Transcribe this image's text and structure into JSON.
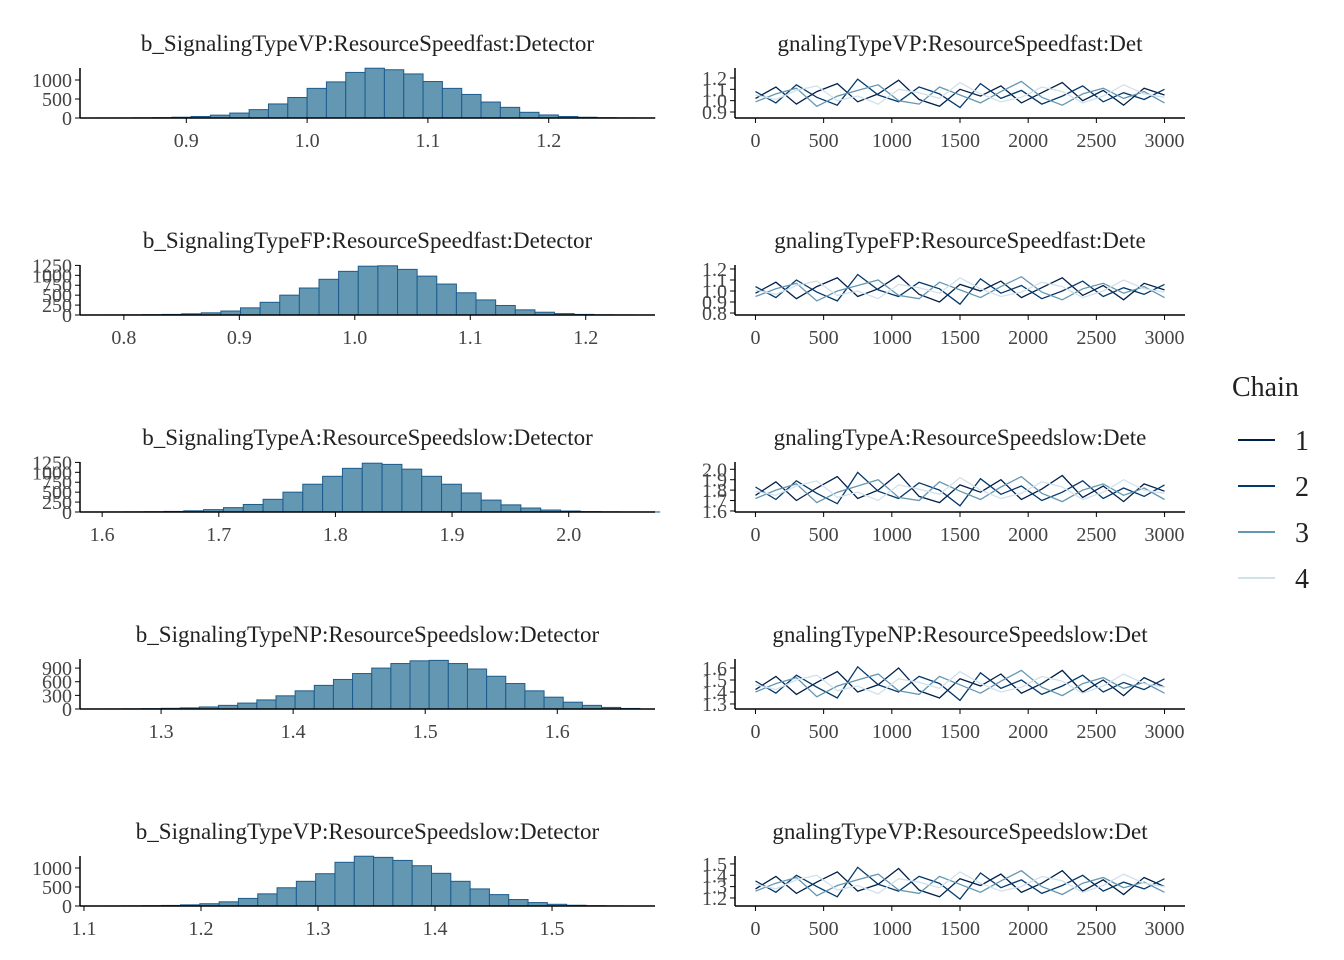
{
  "chart_data": [
    {
      "type": "histogram",
      "title": "b_SignalingTypeVP:ResourceSpeedfast:Detector",
      "color": "#6497b1",
      "edge_color": "#1c5c8e",
      "bins": [
        0.824,
        0.84,
        0.856,
        0.872,
        0.888,
        0.904,
        0.92,
        0.936,
        0.952,
        0.968,
        0.984,
        1.0,
        1.016,
        1.032,
        1.048,
        1.064,
        1.08,
        1.096,
        1.112,
        1.128,
        1.144,
        1.16,
        1.176,
        1.192,
        1.208,
        1.224,
        1.24,
        1.256,
        1.272,
        1.288
      ],
      "counts": [
        1,
        2,
        5,
        10,
        20,
        40,
        75,
        130,
        220,
        370,
        540,
        780,
        950,
        1200,
        1310,
        1270,
        1160,
        960,
        780,
        620,
        420,
        280,
        150,
        80,
        40,
        20,
        8,
        3,
        1
      ],
      "xlim": [
        0.812,
        1.288
      ],
      "ylim": [
        0,
        1316
      ],
      "xticks": [
        0.9,
        {
          "value": 1,
          "label": "1.0"
        },
        1.1,
        1.2
      ],
      "yticks": [
        0,
        500,
        1000
      ]
    },
    {
      "type": "line",
      "title": "gnalingTypeVP:ResourceSpeedfast:Det",
      "legend_title": "Chain",
      "x": [
        0,
        150,
        300,
        450,
        600,
        750,
        900,
        1050,
        1200,
        1350,
        1500,
        1650,
        1800,
        1950,
        2100,
        2250,
        2400,
        2550,
        2700,
        2850,
        3000
      ],
      "series": [
        {
          "name": "1",
          "color": "#011f4b",
          "values": [
            1.02,
            1.12,
            0.97,
            1.08,
            1.15,
            0.99,
            1.06,
            1.18,
            1.01,
            0.95,
            1.1,
            1.04,
            1.13,
            0.98,
            1.07,
            1.16,
            1.0,
            1.09,
            0.96,
            1.11,
            1.05
          ]
        },
        {
          "name": "2",
          "color": "#03396c",
          "values": [
            1.08,
            0.98,
            1.14,
            1.03,
            0.96,
            1.19,
            1.05,
            0.99,
            1.12,
            1.06,
            0.94,
            1.15,
            1.02,
            1.09,
            0.97,
            1.04,
            1.13,
            0.99,
            1.07,
            1.01,
            1.1
          ]
        },
        {
          "name": "3",
          "color": "#6497b1",
          "values": [
            0.99,
            1.06,
            1.11,
            0.95,
            1.04,
            1.09,
            1.14,
            1.0,
            0.97,
            1.12,
            1.05,
            0.98,
            1.08,
            1.17,
            1.03,
            0.96,
            1.06,
            1.11,
            1.02,
            1.08,
            0.98
          ]
        },
        {
          "name": "4",
          "color": "#d1e1ec",
          "values": [
            1.05,
            1.01,
            1.09,
            1.13,
            1.0,
            1.04,
            0.97,
            1.1,
            1.07,
            1.02,
            1.16,
            1.06,
            0.99,
            1.03,
            1.12,
            1.08,
            0.98,
            1.04,
            1.14,
            1.06,
            1.03
          ]
        }
      ],
      "xlim": [
        -150,
        3150
      ],
      "ylim": [
        0.847,
        1.288
      ],
      "xticks": [
        0,
        500,
        1000,
        1500,
        2000,
        2500,
        3000
      ],
      "yticks": [
        0.9,
        {
          "value": 1,
          "label": "1.0"
        },
        1.1,
        1.2
      ]
    },
    {
      "type": "histogram",
      "title": "b_SignalingTypeFP:ResourceSpeedfast:Detector",
      "color": "#6497b1",
      "edge_color": "#1c5c8e",
      "bins": [
        0.765,
        0.782,
        0.799,
        0.816,
        0.833,
        0.85,
        0.867,
        0.884,
        0.901,
        0.918,
        0.935,
        0.952,
        0.969,
        0.986,
        1.003,
        1.02,
        1.037,
        1.054,
        1.071,
        1.088,
        1.105,
        1.122,
        1.139,
        1.156,
        1.173,
        1.19,
        1.207,
        1.224,
        1.241,
        1.258
      ],
      "counts": [
        1,
        2,
        4,
        8,
        15,
        30,
        55,
        100,
        180,
        320,
        500,
        680,
        900,
        1100,
        1230,
        1240,
        1150,
        980,
        780,
        560,
        380,
        240,
        130,
        70,
        35,
        15,
        6,
        3,
        1
      ],
      "xlim": [
        0.762,
        1.26
      ],
      "ylim": [
        0,
        1260
      ],
      "xticks": [
        0.8,
        0.9,
        {
          "value": 1,
          "label": "1.0"
        },
        1.1,
        1.2
      ],
      "yticks": [
        0,
        250,
        500,
        750,
        1000,
        1250
      ]
    },
    {
      "type": "line",
      "title": "gnalingTypeFP:ResourceSpeedfast:Dete",
      "x": [
        0,
        150,
        300,
        450,
        600,
        750,
        900,
        1050,
        1200,
        1350,
        1500,
        1650,
        1800,
        1950,
        2100,
        2250,
        2400,
        2550,
        2700,
        2850,
        3000
      ],
      "series": [
        {
          "color": "#011f4b",
          "values": [
            0.98,
            1.08,
            0.93,
            1.04,
            1.12,
            0.95,
            1.02,
            1.14,
            0.97,
            0.9,
            1.06,
            1.0,
            1.09,
            0.94,
            1.03,
            1.12,
            0.96,
            1.05,
            0.92,
            1.07,
            1.01
          ]
        },
        {
          "color": "#03396c",
          "values": [
            1.04,
            0.94,
            1.1,
            0.99,
            0.91,
            1.15,
            1.01,
            0.95,
            1.08,
            1.02,
            0.88,
            1.11,
            0.98,
            1.05,
            0.93,
            1.0,
            1.09,
            0.95,
            1.03,
            0.97,
            1.06
          ]
        },
        {
          "color": "#6497b1",
          "values": [
            0.95,
            1.02,
            1.07,
            0.91,
            1.0,
            1.05,
            1.1,
            0.96,
            0.93,
            1.08,
            1.01,
            0.94,
            1.04,
            1.13,
            0.99,
            0.92,
            1.02,
            1.07,
            0.98,
            1.04,
            0.94
          ]
        },
        {
          "color": "#d1e1ec",
          "values": [
            1.01,
            0.97,
            1.05,
            1.09,
            0.96,
            1.0,
            0.93,
            1.06,
            1.03,
            0.98,
            1.12,
            1.02,
            0.95,
            0.99,
            1.08,
            1.04,
            0.94,
            1.0,
            1.1,
            1.02,
            0.99
          ]
        }
      ],
      "xlim": [
        -150,
        3150
      ],
      "ylim": [
        0.782,
        1.236
      ],
      "xticks": [
        0,
        500,
        1000,
        1500,
        2000,
        2500,
        3000
      ],
      "yticks": [
        0.8,
        0.9,
        {
          "value": 1,
          "label": "1.0"
        },
        1.1,
        1.2
      ]
    },
    {
      "type": "histogram",
      "title": "b_SignalingTypeA:ResourceSpeedslow:Detector",
      "color": "#6497b1",
      "edge_color": "#1c5c8e",
      "bins": [
        1.585,
        1.602,
        1.619,
        1.636,
        1.653,
        1.67,
        1.687,
        1.704,
        1.721,
        1.738,
        1.755,
        1.772,
        1.789,
        1.806,
        1.823,
        1.84,
        1.857,
        1.874,
        1.891,
        1.908,
        1.925,
        1.942,
        1.959,
        1.976,
        1.993,
        2.01,
        2.027,
        2.044,
        2.061,
        2.078
      ],
      "counts": [
        1,
        2,
        4,
        8,
        15,
        30,
        60,
        110,
        190,
        320,
        500,
        700,
        900,
        1100,
        1230,
        1200,
        1080,
        900,
        700,
        480,
        300,
        180,
        100,
        50,
        25,
        10,
        5,
        2,
        1
      ],
      "xlim": [
        1.581,
        2.074
      ],
      "ylim": [
        0,
        1260
      ],
      "xticks": [
        1.6,
        1.7,
        1.8,
        1.9,
        {
          "value": 2,
          "label": "2.0"
        }
      ],
      "yticks": [
        0,
        250,
        500,
        750,
        1000,
        1250
      ]
    },
    {
      "type": "line",
      "title": "gnalingTypeA:ResourceSpeedslow:Dete",
      "x": [
        0,
        150,
        300,
        450,
        600,
        750,
        900,
        1050,
        1200,
        1350,
        1500,
        1650,
        1800,
        1950,
        2100,
        2250,
        2400,
        2550,
        2700,
        2850,
        3000
      ],
      "series": [
        {
          "color": "#011f4b",
          "values": [
            1.75,
            1.88,
            1.7,
            1.82,
            1.93,
            1.72,
            1.8,
            1.96,
            1.74,
            1.68,
            1.85,
            1.78,
            1.9,
            1.71,
            1.81,
            1.94,
            1.73,
            1.84,
            1.69,
            1.86,
            1.79
          ]
        },
        {
          "color": "#03396c",
          "values": [
            1.83,
            1.71,
            1.89,
            1.77,
            1.67,
            1.97,
            1.79,
            1.72,
            1.87,
            1.8,
            1.65,
            1.91,
            1.76,
            1.84,
            1.7,
            1.78,
            1.89,
            1.72,
            1.82,
            1.74,
            1.85
          ]
        },
        {
          "color": "#6497b1",
          "values": [
            1.72,
            1.8,
            1.86,
            1.68,
            1.78,
            1.84,
            1.9,
            1.73,
            1.7,
            1.88,
            1.79,
            1.71,
            1.83,
            1.93,
            1.77,
            1.69,
            1.8,
            1.86,
            1.75,
            1.82,
            1.71
          ]
        },
        {
          "color": "#d1e1ec",
          "values": [
            1.79,
            1.75,
            1.84,
            1.89,
            1.73,
            1.78,
            1.7,
            1.85,
            1.81,
            1.76,
            1.92,
            1.8,
            1.72,
            1.77,
            1.88,
            1.83,
            1.71,
            1.78,
            1.9,
            1.8,
            1.77
          ]
        }
      ],
      "xlim": [
        -150,
        3150
      ],
      "ylim": [
        1.59,
        2.07
      ],
      "xticks": [
        0,
        500,
        1000,
        1500,
        2000,
        2500,
        3000
      ],
      "yticks": [
        1.6,
        1.7,
        1.8,
        1.9,
        {
          "value": 2,
          "label": "2.0"
        }
      ]
    },
    {
      "type": "histogram",
      "title": "b_SignalingTypeNP:ResourceSpeedslow:Detector",
      "color": "#6497b1",
      "edge_color": "#1c5c8e",
      "bins": [
        1.242,
        1.2565,
        1.271,
        1.2855,
        1.3,
        1.3145,
        1.329,
        1.3435,
        1.358,
        1.3725,
        1.387,
        1.4015,
        1.416,
        1.4305,
        1.445,
        1.4595,
        1.474,
        1.4885,
        1.503,
        1.5175,
        1.532,
        1.5465,
        1.561,
        1.5755,
        1.59,
        1.6045,
        1.619,
        1.6335,
        1.648,
        1.6625
      ],
      "counts": [
        1,
        2,
        4,
        8,
        15,
        25,
        45,
        80,
        130,
        200,
        290,
        400,
        520,
        650,
        780,
        900,
        1000,
        1060,
        1070,
        1000,
        880,
        720,
        560,
        400,
        260,
        150,
        80,
        35,
        12
      ],
      "xlim": [
        1.2386,
        1.674
      ],
      "ylim": [
        0,
        1100
      ],
      "xticks": [
        1.3,
        1.4,
        1.5,
        1.6
      ],
      "yticks": [
        0,
        300,
        600,
        900
      ]
    },
    {
      "type": "line",
      "title": "gnalingTypeNP:ResourceSpeedslow:Det",
      "x": [
        0,
        150,
        300,
        450,
        600,
        750,
        900,
        1050,
        1200,
        1350,
        1500,
        1650,
        1800,
        1950,
        2100,
        2250,
        2400,
        2550,
        2700,
        2850,
        3000
      ],
      "series": [
        {
          "color": "#011f4b",
          "values": [
            1.42,
            1.53,
            1.38,
            1.48,
            1.57,
            1.4,
            1.46,
            1.6,
            1.41,
            1.35,
            1.51,
            1.45,
            1.55,
            1.39,
            1.47,
            1.58,
            1.4,
            1.5,
            1.37,
            1.52,
            1.44
          ]
        },
        {
          "color": "#03396c",
          "values": [
            1.49,
            1.39,
            1.54,
            1.44,
            1.35,
            1.61,
            1.46,
            1.4,
            1.53,
            1.47,
            1.33,
            1.56,
            1.43,
            1.5,
            1.38,
            1.45,
            1.54,
            1.4,
            1.48,
            1.42,
            1.51
          ]
        },
        {
          "color": "#6497b1",
          "values": [
            1.4,
            1.47,
            1.52,
            1.36,
            1.45,
            1.5,
            1.55,
            1.41,
            1.38,
            1.53,
            1.46,
            1.39,
            1.49,
            1.58,
            1.44,
            1.37,
            1.47,
            1.52,
            1.43,
            1.48,
            1.39
          ]
        },
        {
          "color": "#d1e1ec",
          "values": [
            1.46,
            1.42,
            1.5,
            1.54,
            1.41,
            1.45,
            1.38,
            1.51,
            1.48,
            1.43,
            1.57,
            1.47,
            1.4,
            1.44,
            1.53,
            1.49,
            1.39,
            1.45,
            1.55,
            1.47,
            1.44
          ]
        }
      ],
      "xlim": [
        -150,
        3150
      ],
      "ylim": [
        1.258,
        1.675
      ],
      "xticks": [
        0,
        500,
        1000,
        1500,
        2000,
        2500,
        3000
      ],
      "yticks": [
        1.3,
        1.4,
        1.5,
        1.6
      ]
    },
    {
      "type": "histogram",
      "title": "b_SignalingTypeVP:ResourceSpeedslow:Detector",
      "color": "#6497b1",
      "edge_color": "#1c5c8e",
      "bins": [
        1.1,
        1.1165,
        1.133,
        1.1495,
        1.166,
        1.1825,
        1.199,
        1.2155,
        1.232,
        1.2485,
        1.265,
        1.2815,
        1.298,
        1.3145,
        1.331,
        1.3475,
        1.364,
        1.3805,
        1.397,
        1.4135,
        1.43,
        1.4465,
        1.463,
        1.4795,
        1.496,
        1.5125,
        1.529,
        1.5455,
        1.562,
        1.5785
      ],
      "counts": [
        1,
        2,
        4,
        8,
        15,
        30,
        60,
        110,
        200,
        320,
        480,
        650,
        850,
        1150,
        1310,
        1280,
        1200,
        1060,
        860,
        650,
        450,
        300,
        170,
        90,
        45,
        20,
        8,
        3,
        1
      ],
      "xlim": [
        1.0966,
        1.588
      ],
      "ylim": [
        0,
        1316
      ],
      "xticks": [
        1.1,
        1.2,
        1.3,
        1.4,
        1.5
      ],
      "yticks": [
        0,
        500,
        1000
      ]
    },
    {
      "type": "line",
      "title": "gnalingTypeVP:ResourceSpeedslow:Det",
      "x": [
        0,
        150,
        300,
        450,
        600,
        750,
        900,
        1050,
        1200,
        1350,
        1500,
        1650,
        1800,
        1950,
        2100,
        2250,
        2400,
        2550,
        2700,
        2850,
        3000
      ],
      "series": [
        {
          "color": "#011f4b",
          "values": [
            1.28,
            1.39,
            1.24,
            1.34,
            1.43,
            1.26,
            1.32,
            1.46,
            1.27,
            1.21,
            1.37,
            1.31,
            1.41,
            1.25,
            1.33,
            1.44,
            1.26,
            1.36,
            1.23,
            1.38,
            1.3
          ]
        },
        {
          "color": "#03396c",
          "values": [
            1.35,
            1.25,
            1.4,
            1.3,
            1.21,
            1.47,
            1.32,
            1.26,
            1.39,
            1.33,
            1.19,
            1.42,
            1.29,
            1.36,
            1.24,
            1.31,
            1.4,
            1.26,
            1.34,
            1.28,
            1.37
          ]
        },
        {
          "color": "#6497b1",
          "values": [
            1.26,
            1.33,
            1.38,
            1.22,
            1.31,
            1.36,
            1.41,
            1.27,
            1.24,
            1.39,
            1.32,
            1.25,
            1.35,
            1.44,
            1.3,
            1.23,
            1.33,
            1.38,
            1.29,
            1.34,
            1.25
          ]
        },
        {
          "color": "#d1e1ec",
          "values": [
            1.32,
            1.28,
            1.36,
            1.4,
            1.27,
            1.31,
            1.24,
            1.37,
            1.34,
            1.29,
            1.43,
            1.33,
            1.26,
            1.3,
            1.39,
            1.35,
            1.25,
            1.31,
            1.41,
            1.33,
            1.3
          ]
        }
      ],
      "xlim": [
        -150,
        3150
      ],
      "ylim": [
        1.129,
        1.57
      ],
      "xticks": [
        0,
        500,
        1000,
        1500,
        2000,
        2500,
        3000
      ],
      "yticks": [
        1.2,
        1.3,
        1.4,
        1.5
      ]
    }
  ]
}
